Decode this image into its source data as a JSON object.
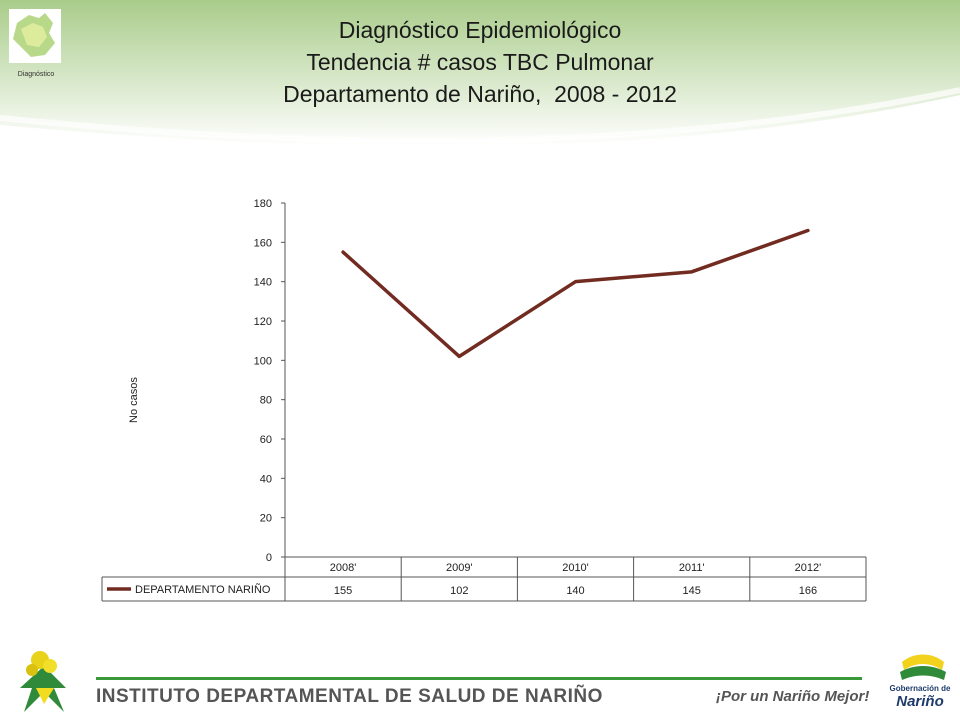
{
  "header": {
    "title_lines": [
      "Diagnóstico Epidemiológico",
      "Tendencia # casos TBC Pulmonar",
      "Departamento de Nariño,  2008 - 2012"
    ],
    "logo_caption": "Diagnóstico"
  },
  "chart_data": {
    "type": "line",
    "categories": [
      "2008'",
      "2009'",
      "2010'",
      "2011'",
      "2012'"
    ],
    "series": [
      {
        "name": "DEPARTAMENTO NARIÑO",
        "values": [
          155,
          102,
          140,
          145,
          166
        ],
        "color": "#722b20"
      }
    ],
    "ylabel": "No  casos",
    "ylim": [
      0,
      180
    ],
    "yticks": [
      0,
      20,
      40,
      60,
      80,
      100,
      120,
      140,
      160,
      180
    ],
    "grid": false,
    "data_table": true
  },
  "footer": {
    "institution": "INSTITUTO DEPARTAMENTAL DE SALUD DE NARIÑO",
    "slogan": "¡Por un Nariño Mejor!",
    "right_logo_small": "Gobernación de",
    "right_logo_big": "Nariño"
  },
  "colors": {
    "header_green": "#bcd9a4",
    "line": "#722b20",
    "footer_rule": "#3a9a3a"
  }
}
